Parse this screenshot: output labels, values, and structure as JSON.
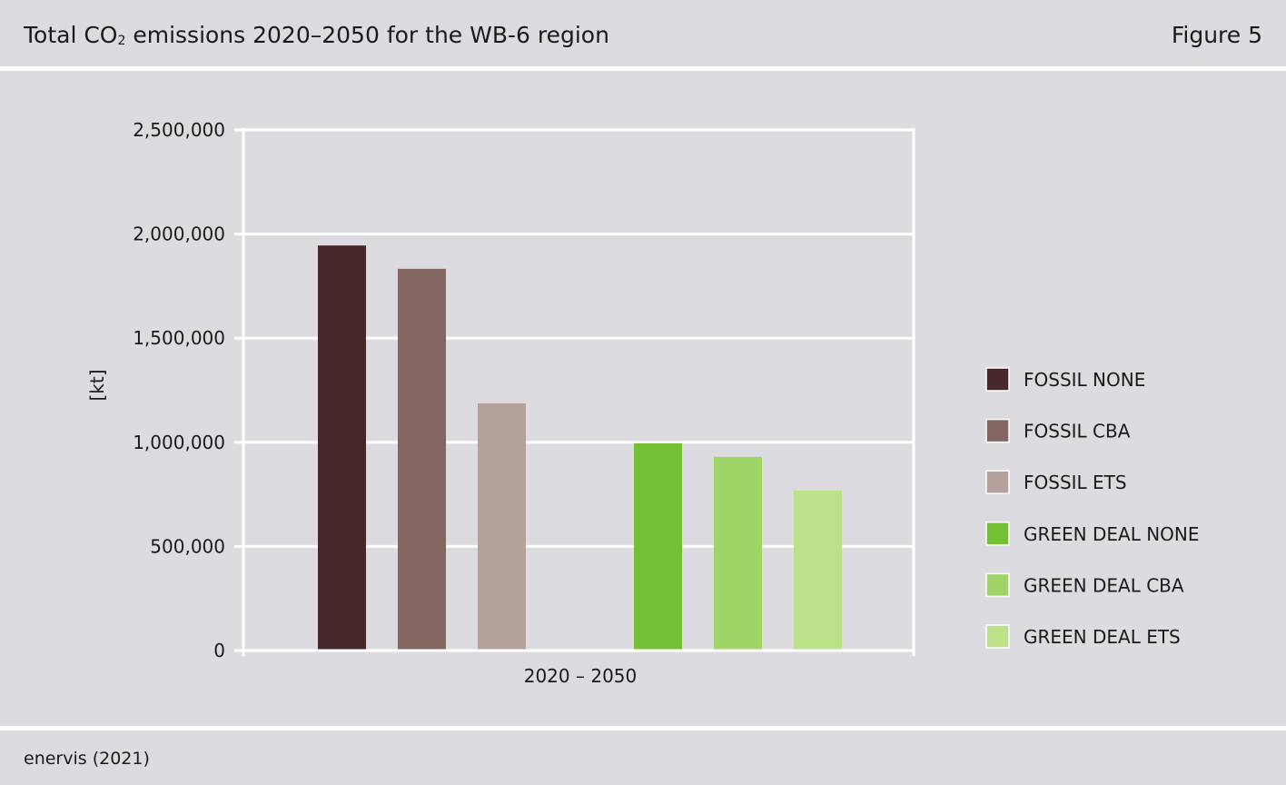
{
  "header": {
    "title_main": "Total CO",
    "title_sub": "2",
    "title_rest": " emissions 2020–2050 for the WB-6 region",
    "figure_label": "Figure 5"
  },
  "footer": {
    "source": "enervis (2021)"
  },
  "chart_data": {
    "type": "bar",
    "title": "Total CO₂ emissions 2020–2050 for the WB-6 region",
    "categories": [
      "2020 – 2050"
    ],
    "ylabel": "[kt]",
    "xlabel": "",
    "ylim": [
      0,
      2500000
    ],
    "yticks": [
      0,
      500000,
      1000000,
      1500000,
      2000000,
      2500000
    ],
    "ytick_labels": [
      "0",
      "500,000",
      "1,000,000",
      "1,500,000",
      "2,000,000",
      "2,500,000"
    ],
    "grid": true,
    "legend_position": "right",
    "series": [
      {
        "name": "FOSSIL NONE",
        "values": [
          1945000
        ],
        "color": "#46282b"
      },
      {
        "name": "FOSSIL CBA",
        "values": [
          1833000
        ],
        "color": "#82665f"
      },
      {
        "name": "FOSSIL ETS",
        "values": [
          1187000
        ],
        "color": "#b4a199"
      },
      {
        "name": "GREEN DEAL NONE",
        "values": [
          995000
        ],
        "color": "#74c035"
      },
      {
        "name": "GREEN DEAL CBA",
        "values": [
          930000
        ],
        "color": "#9fd567"
      },
      {
        "name": "GREEN DEAL ETS",
        "values": [
          768000
        ],
        "color": "#bce289"
      }
    ]
  }
}
